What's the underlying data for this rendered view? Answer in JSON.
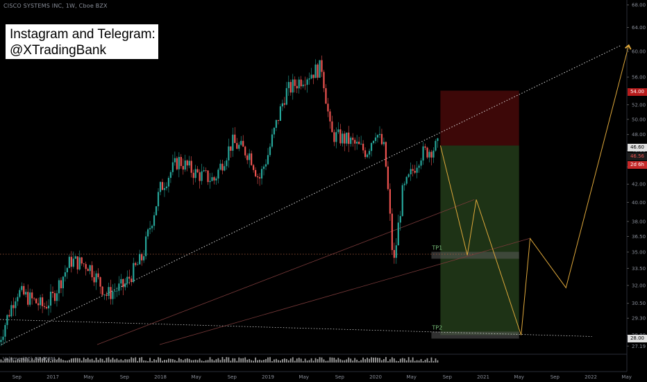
{
  "header": {
    "symbol_line": "CISCO SYSTEMS INC, 1W, Cboe BZX"
  },
  "promo": {
    "line1": "Instagram and Telegram:",
    "line2": "@XTradingBank"
  },
  "volume_label": "Volume (20) 40.463M  –",
  "colors": {
    "background": "#000000",
    "up_candle": "#26a69a",
    "down_candle": "#ef5350",
    "projection": "#e0a93b",
    "stop_zone": "#3d0808",
    "target_zone": "#1e3316",
    "trendline": "#d8d8d8"
  },
  "price_tags": {
    "stop": "54.00",
    "entry": "46.60",
    "last": "46.56",
    "countdown": "2d 6h",
    "target": "28.00"
  },
  "chart_data": {
    "type": "candlestick",
    "title": "CISCO SYSTEMS INC, 1W, Cboe BZX",
    "y_axis_ticks": [
      "68.00",
      "64.00",
      "60.00",
      "56.00",
      "52.00",
      "50.00",
      "48.00",
      "46.00",
      "44.00",
      "42.00",
      "40.00",
      "38.00",
      "36.50",
      "35.00",
      "33.50",
      "32.00",
      "30.50",
      "29.30",
      "28.00",
      "27.19"
    ],
    "y_axis_scale": "log",
    "ylim": [
      26.7,
      68.0
    ],
    "x_axis_ticks": [
      "Sep",
      "2017",
      "May",
      "Sep",
      "2018",
      "May",
      "Sep",
      "2019",
      "May",
      "Sep",
      "2020",
      "May",
      "Sep",
      "2021",
      "May",
      "Sep",
      "2022",
      "May"
    ],
    "price_path_weekly_closes_approx": [
      {
        "date": "2016-07",
        "close": 27.5
      },
      {
        "date": "2016-09",
        "close": 31.5
      },
      {
        "date": "2016-12",
        "close": 30.2
      },
      {
        "date": "2017-01",
        "close": 31.0
      },
      {
        "date": "2017-03",
        "close": 34.2
      },
      {
        "date": "2017-05",
        "close": 33.8
      },
      {
        "date": "2017-07",
        "close": 31.2
      },
      {
        "date": "2017-09",
        "close": 32.0
      },
      {
        "date": "2017-11",
        "close": 34.5
      },
      {
        "date": "2018-01",
        "close": 41.5
      },
      {
        "date": "2018-03",
        "close": 44.8
      },
      {
        "date": "2018-05",
        "close": 43.2
      },
      {
        "date": "2018-07",
        "close": 42.5
      },
      {
        "date": "2018-09",
        "close": 47.0
      },
      {
        "date": "2018-11",
        "close": 45.5
      },
      {
        "date": "2018-12",
        "close": 42.5
      },
      {
        "date": "2019-01",
        "close": 45.5
      },
      {
        "date": "2019-03",
        "close": 53.8
      },
      {
        "date": "2019-05",
        "close": 56.0
      },
      {
        "date": "2019-07",
        "close": 57.5
      },
      {
        "date": "2019-08",
        "close": 48.0
      },
      {
        "date": "2019-10",
        "close": 47.2
      },
      {
        "date": "2019-12",
        "close": 45.8
      },
      {
        "date": "2020-01",
        "close": 48.5
      },
      {
        "date": "2020-02",
        "close": 46.0
      },
      {
        "date": "2020-03",
        "close": 33.5
      },
      {
        "date": "2020-04",
        "close": 41.0
      },
      {
        "date": "2020-06",
        "close": 45.5
      },
      {
        "date": "2020-08",
        "close": 46.56
      }
    ],
    "position_tool": {
      "entry": 46.6,
      "stop": 54.0,
      "targets": [
        {
          "name": "TP1",
          "price": 34.7
        },
        {
          "name": "TP2",
          "price": 28.0
        }
      ]
    },
    "projection_path": [
      {
        "date": "2020-08",
        "price": 46.6
      },
      {
        "date": "2020-11",
        "price": 34.7
      },
      {
        "date": "2020-12",
        "price": 40.3
      },
      {
        "date": "2021-05",
        "price": 28.0
      },
      {
        "date": "2021-06",
        "price": 36.3
      },
      {
        "date": "2021-10",
        "price": 31.8
      },
      {
        "date": "2022-05",
        "price": 61.0
      }
    ],
    "grid": false,
    "legend": "none"
  }
}
